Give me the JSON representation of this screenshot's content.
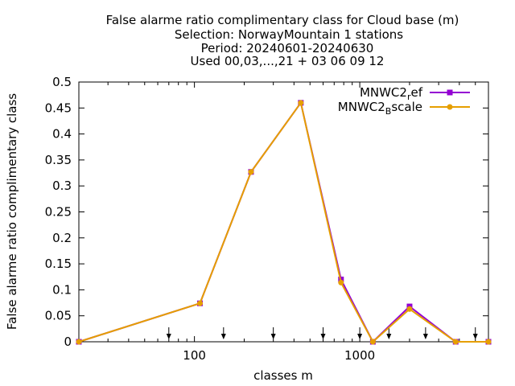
{
  "chart_data": {
    "type": "line",
    "title_lines": [
      "False alarme ratio complimentary class  for Cloud base (m)",
      "Selection: NorwayMountain      1 stations",
      "Period: 20240601-20240630",
      "Used 00,03,...,21 + 03 06 09 12"
    ],
    "xlabel": "classes m",
    "ylabel": "False alarme ratio complimentary class",
    "x_scale": "log",
    "xlim": [
      20,
      6000
    ],
    "ylim": [
      0,
      0.5
    ],
    "x_ticks": [
      100,
      1000
    ],
    "x_tick_labels": [
      "100",
      "1000"
    ],
    "y_ticks": [
      0,
      0.05,
      0.1,
      0.15,
      0.2,
      0.25,
      0.3,
      0.35,
      0.4,
      0.45,
      0.5
    ],
    "y_tick_labels": [
      "0",
      "0.05",
      "0.1",
      "0.15",
      "0.2",
      "0.25",
      "0.3",
      "0.35",
      "0.4",
      "0.45",
      "0.5"
    ],
    "grid": false,
    "legend_position": "top-right",
    "arrow_markers_x": [
      70,
      150,
      300,
      600,
      1000,
      1500,
      2500,
      5000
    ],
    "series": [
      {
        "name": "MNWC2_ref",
        "legend_main": "MNWC2",
        "legend_sub": "r",
        "legend_tail": "ef",
        "color": "#9400d3",
        "marker": "square",
        "x": [
          20,
          108,
          220,
          440,
          770,
          1200,
          2000,
          3800,
          6000
        ],
        "y": [
          0.0,
          0.074,
          0.327,
          0.46,
          0.12,
          0.0,
          0.068,
          0.0,
          0.0
        ]
      },
      {
        "name": "MNWC2_Bscale",
        "legend_main": "MNWC2",
        "legend_sub": "B",
        "legend_tail": "scale",
        "color": "#e69f00",
        "marker": "circle",
        "x": [
          20,
          108,
          220,
          440,
          770,
          1200,
          2000,
          3800,
          6000
        ],
        "y": [
          0.0,
          0.074,
          0.327,
          0.46,
          0.114,
          0.0,
          0.063,
          0.0,
          0.0
        ]
      }
    ]
  }
}
